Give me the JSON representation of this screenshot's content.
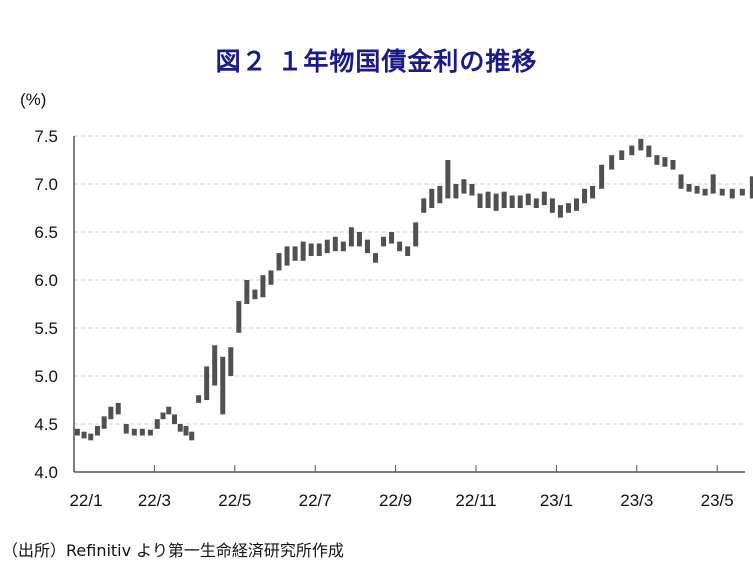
{
  "chart_data": {
    "type": "bar",
    "subtype": "daily-range (high-low) bars",
    "title": "図２ １年物国債金利の推移",
    "ylabel": "(%)",
    "ylim": [
      4.0,
      7.5
    ],
    "yticks": [
      "4.0",
      "4.5",
      "5.0",
      "5.5",
      "6.0",
      "6.5",
      "7.0",
      "7.5"
    ],
    "xticks": [
      "22/1",
      "22/3",
      "22/5",
      "22/7",
      "22/9",
      "22/11",
      "23/1",
      "23/3",
      "23/5"
    ],
    "grid": "horizontal dashed",
    "series_color": "#505050",
    "months": [
      {
        "month": "22/1",
        "ranges": [
          [
            4.38,
            4.45
          ],
          [
            4.35,
            4.42
          ],
          [
            4.33,
            4.4
          ],
          [
            4.38,
            4.48
          ],
          [
            4.45,
            4.58
          ],
          [
            4.55,
            4.68
          ]
        ]
      },
      {
        "month": "22/2",
        "ranges": [
          [
            4.6,
            4.72
          ],
          [
            4.4,
            4.5
          ],
          [
            4.38,
            4.45
          ],
          [
            4.38,
            4.45
          ],
          [
            4.38,
            4.44
          ]
        ]
      },
      {
        "month": "22/3",
        "ranges": [
          [
            4.45,
            4.55
          ],
          [
            4.55,
            4.62
          ],
          [
            4.6,
            4.68
          ],
          [
            4.5,
            4.6
          ],
          [
            4.42,
            4.5
          ],
          [
            4.38,
            4.48
          ],
          [
            4.33,
            4.42
          ]
        ]
      },
      {
        "month": "22/4",
        "ranges": [
          [
            4.72,
            4.8
          ],
          [
            4.75,
            5.1
          ],
          [
            4.9,
            5.32
          ],
          [
            4.6,
            5.2
          ],
          [
            5.0,
            5.3
          ]
        ]
      },
      {
        "month": "22/5",
        "ranges": [
          [
            5.45,
            5.78
          ],
          [
            5.75,
            6.0
          ],
          [
            5.8,
            5.9
          ],
          [
            5.82,
            6.05
          ],
          [
            5.95,
            6.1
          ]
        ]
      },
      {
        "month": "22/6",
        "ranges": [
          [
            6.1,
            6.28
          ],
          [
            6.15,
            6.35
          ],
          [
            6.2,
            6.35
          ],
          [
            6.2,
            6.4
          ],
          [
            6.25,
            6.38
          ]
        ]
      },
      {
        "month": "22/7",
        "ranges": [
          [
            6.25,
            6.38
          ],
          [
            6.28,
            6.42
          ],
          [
            6.3,
            6.45
          ],
          [
            6.3,
            6.4
          ],
          [
            6.35,
            6.55
          ]
        ]
      },
      {
        "month": "22/8",
        "ranges": [
          [
            6.35,
            6.5
          ],
          [
            6.28,
            6.42
          ],
          [
            6.18,
            6.28
          ],
          [
            6.35,
            6.45
          ],
          [
            6.38,
            6.5
          ]
        ]
      },
      {
        "month": "22/9",
        "ranges": [
          [
            6.3,
            6.4
          ],
          [
            6.25,
            6.35
          ],
          [
            6.35,
            6.6
          ],
          [
            6.7,
            6.85
          ],
          [
            6.75,
            6.95
          ]
        ]
      },
      {
        "month": "22/10",
        "ranges": [
          [
            6.8,
            6.98
          ],
          [
            6.85,
            7.25
          ],
          [
            6.85,
            7.0
          ],
          [
            6.9,
            7.05
          ],
          [
            6.88,
            7.0
          ]
        ]
      },
      {
        "month": "22/11",
        "ranges": [
          [
            6.75,
            6.9
          ],
          [
            6.75,
            6.92
          ],
          [
            6.72,
            6.9
          ],
          [
            6.75,
            6.92
          ],
          [
            6.75,
            6.88
          ]
        ]
      },
      {
        "month": "22/12",
        "ranges": [
          [
            6.75,
            6.88
          ],
          [
            6.78,
            6.9
          ],
          [
            6.75,
            6.85
          ],
          [
            6.78,
            6.92
          ],
          [
            6.7,
            6.85
          ]
        ]
      },
      {
        "month": "23/1",
        "ranges": [
          [
            6.65,
            6.78
          ],
          [
            6.7,
            6.8
          ],
          [
            6.72,
            6.85
          ],
          [
            6.8,
            6.95
          ],
          [
            6.85,
            6.98
          ]
        ]
      },
      {
        "month": "23/2",
        "ranges": [
          [
            6.95,
            7.2
          ],
          [
            7.15,
            7.3
          ],
          [
            7.25,
            7.35
          ],
          [
            7.3,
            7.4
          ]
        ]
      },
      {
        "month": "23/3",
        "ranges": [
          [
            7.35,
            7.47
          ],
          [
            7.28,
            7.4
          ],
          [
            7.2,
            7.3
          ],
          [
            7.18,
            7.28
          ],
          [
            7.15,
            7.25
          ]
        ]
      },
      {
        "month": "23/4",
        "ranges": [
          [
            6.95,
            7.1
          ],
          [
            6.92,
            7.0
          ],
          [
            6.9,
            6.98
          ],
          [
            6.88,
            6.95
          ],
          [
            6.9,
            7.1
          ]
        ]
      },
      {
        "month": "23/5",
        "ranges": [
          [
            6.88,
            6.95
          ],
          [
            6.85,
            6.95
          ],
          [
            6.88,
            6.95
          ],
          [
            6.85,
            7.08
          ]
        ]
      }
    ]
  },
  "source": "（出所）Refinitiv より第一生命経済研究所作成"
}
